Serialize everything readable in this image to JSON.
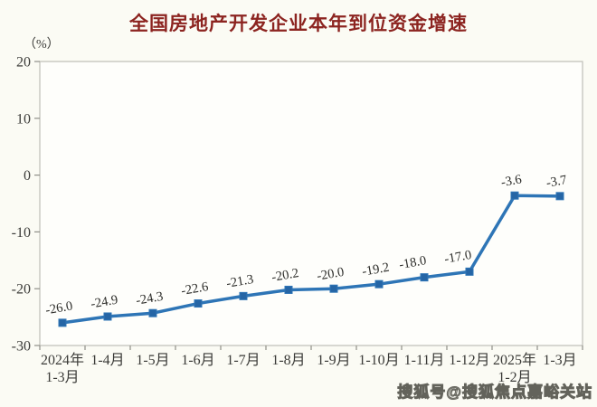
{
  "title": "全国房地产开发企业本年到位资金增速",
  "unit_label": "（%）",
  "watermark": "搜狐号@搜狐焦点嘉峪关站",
  "colors": {
    "title": "#8C2420",
    "line": "#2E75B6",
    "marker": "#2565A5",
    "axis_text": "#3b3b38",
    "data_label": "#2b2b28",
    "frame": "#bfbfb7",
    "tick": "#8f8f88",
    "plot_background": "#FEFEFB",
    "page_background": "#FBFBF4"
  },
  "chart_data": {
    "type": "line",
    "title": "全国房地产开发企业本年到位资金增速",
    "ylabel": "（%）",
    "categories": [
      "2024年\n1-3月",
      "1-4月",
      "1-5月",
      "1-6月",
      "1-7月",
      "1-8月",
      "1-9月",
      "1-10月",
      "1-11月",
      "1-12月",
      "2025年\n1-2月",
      "1-3月"
    ],
    "values": [
      -26.0,
      -24.9,
      -24.3,
      -22.6,
      -21.3,
      -20.2,
      -20.0,
      -19.2,
      -18.0,
      -17.0,
      -3.6,
      -3.7
    ],
    "data_labels": [
      "-26.0",
      "-24.9",
      "-24.3",
      "-22.6",
      "-21.3",
      "-20.2",
      "-20.0",
      "-19.2",
      "-18.0",
      "-17.0",
      "-3.6",
      "-3.7"
    ],
    "ylim": [
      -30,
      20
    ],
    "yticks": [
      20,
      10,
      0,
      -10,
      -20,
      -30
    ],
    "grid": false,
    "legend_position": "none",
    "marker": "square"
  }
}
